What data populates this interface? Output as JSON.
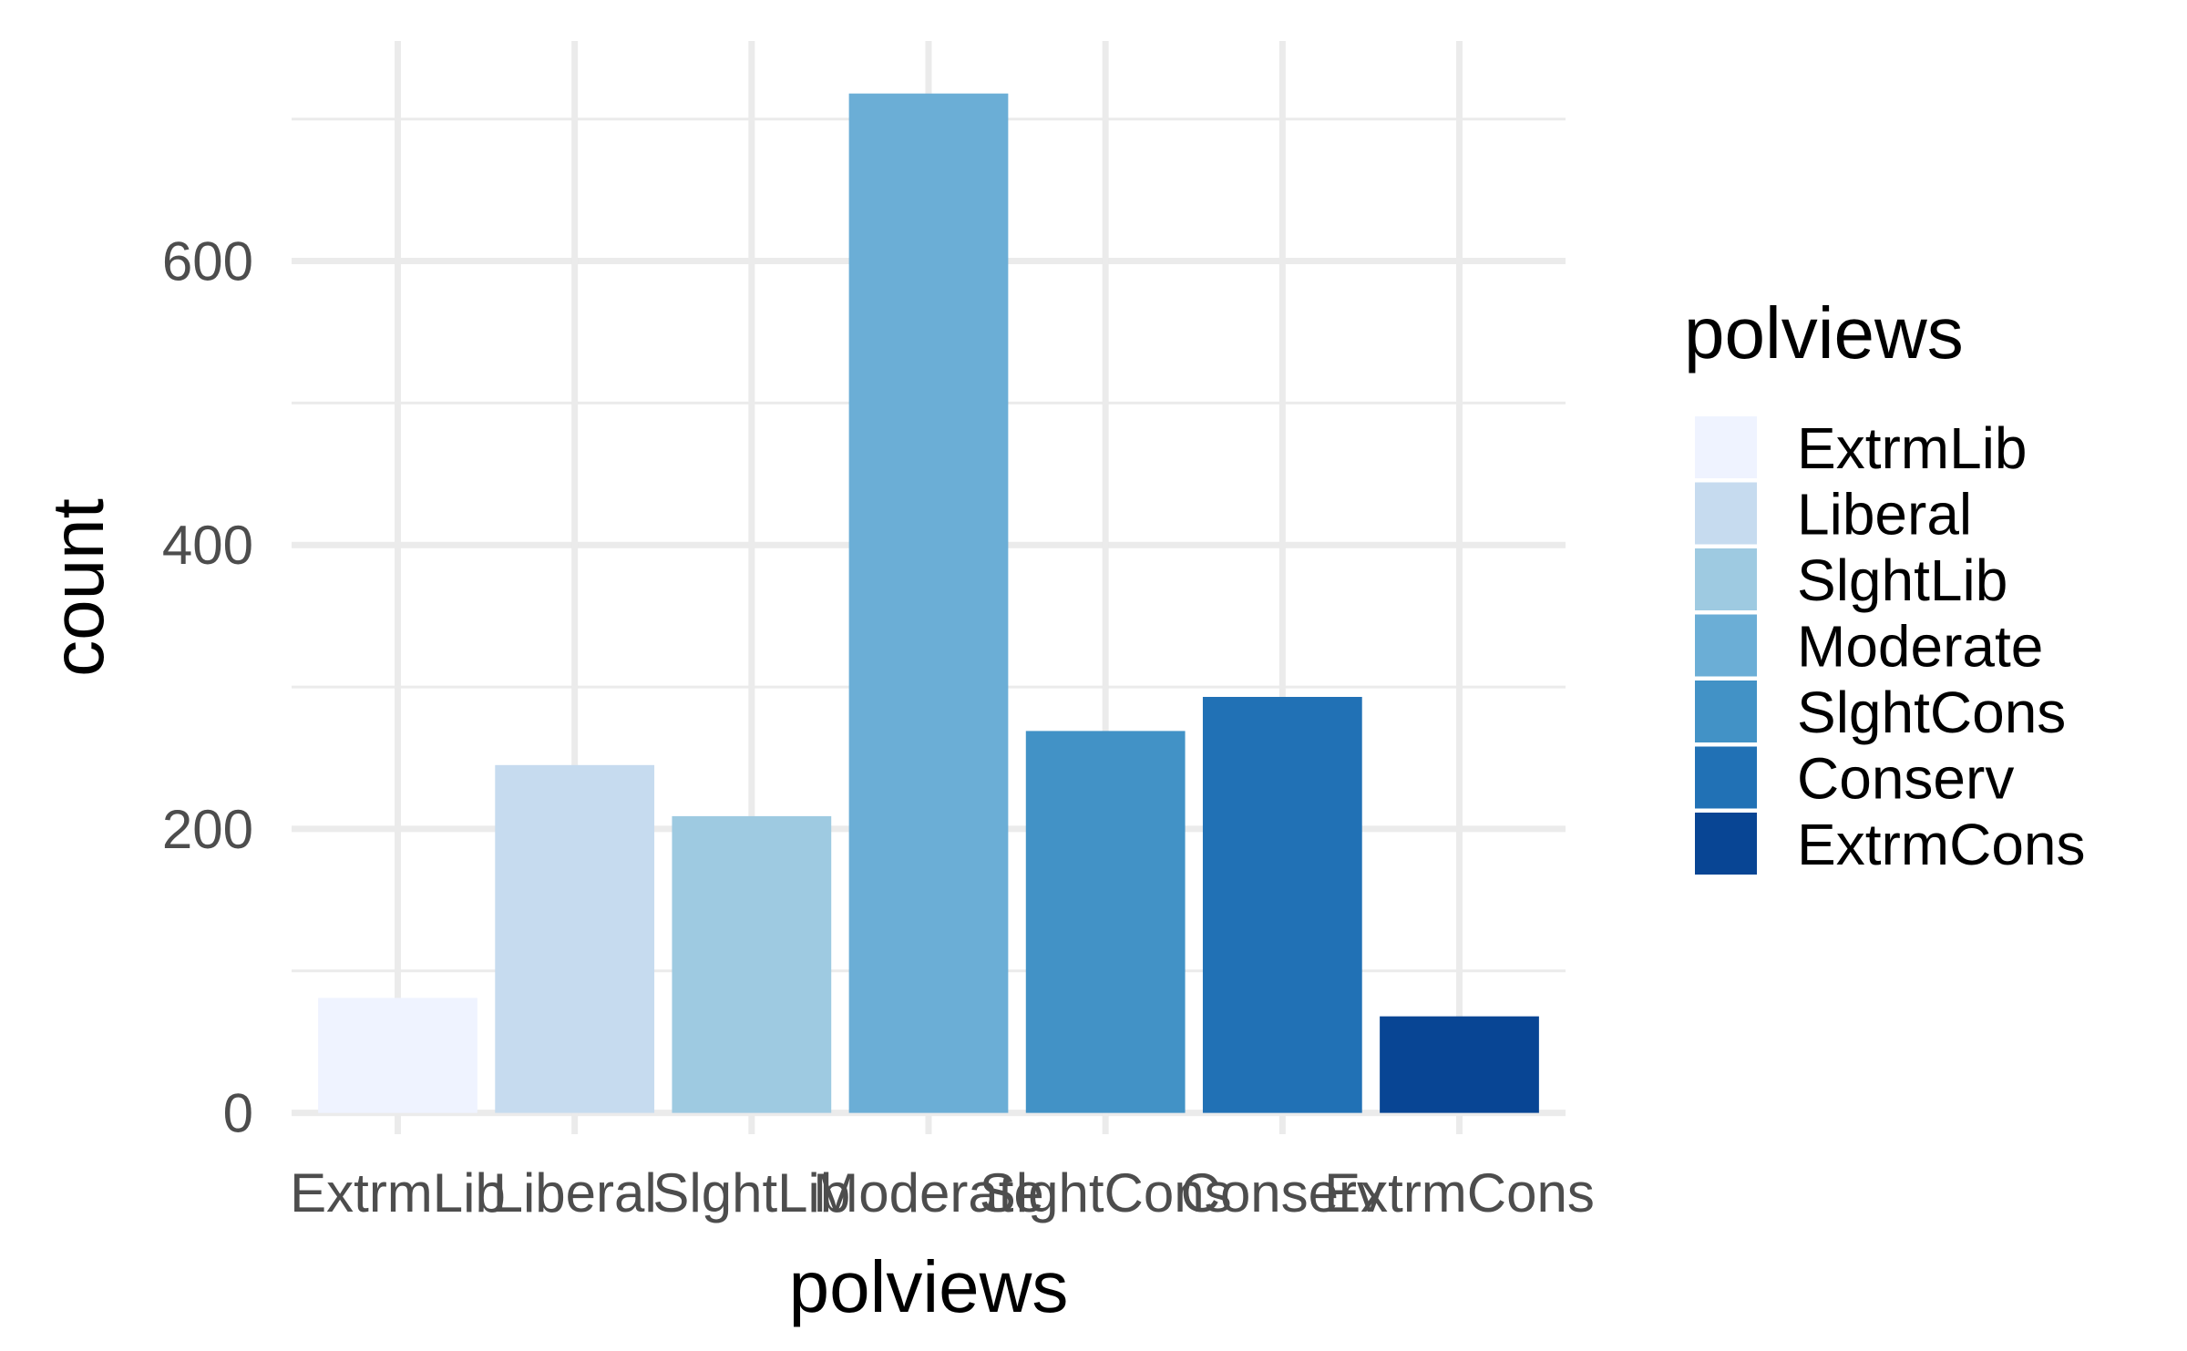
{
  "chart_data": {
    "type": "bar",
    "categories": [
      "ExtrmLib",
      "Liberal",
      "SlghtLib",
      "Moderate",
      "SlghtCons",
      "Conserv",
      "ExtrmCons"
    ],
    "values": [
      81,
      245,
      209,
      718,
      269,
      293,
      68
    ],
    "colors": [
      "#eff3ff",
      "#c6dbef",
      "#9ecae1",
      "#6baed6",
      "#4292c6",
      "#2171b5",
      "#084594"
    ],
    "xlabel": "polviews",
    "ylabel": "count",
    "ylim": [
      -15,
      755
    ],
    "yticks": [
      0,
      200,
      400,
      600
    ],
    "grid": true,
    "legend": {
      "title": "polviews",
      "position": "right",
      "items": [
        "ExtrmLib",
        "Liberal",
        "SlghtLib",
        "Moderate",
        "SlghtCons",
        "Conserv",
        "ExtrmCons"
      ]
    }
  }
}
